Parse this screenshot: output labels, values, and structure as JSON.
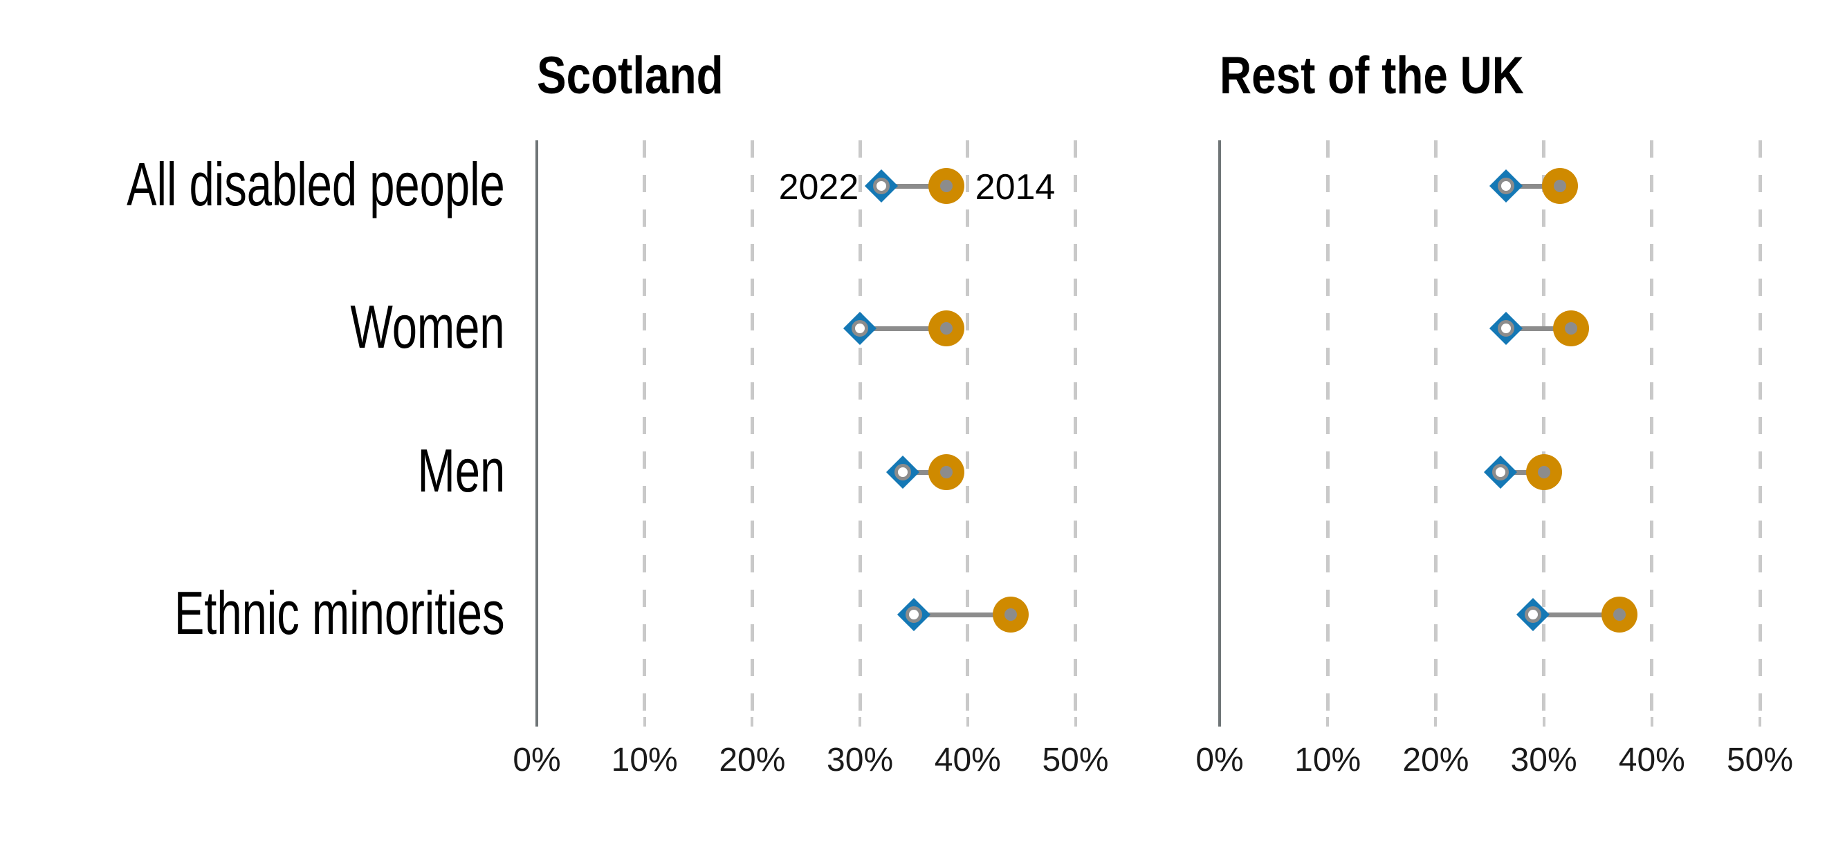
{
  "chart_data": {
    "type": "dumbbell",
    "title": "",
    "categories": [
      "All disabled people",
      "Women",
      "Men",
      "Ethnic minorities"
    ],
    "series_labels": {
      "current": "2022",
      "baseline": "2014"
    },
    "panels": [
      {
        "title": "Scotland",
        "series": [
          {
            "name": "2022",
            "values": [
              32,
              30,
              34,
              35
            ]
          },
          {
            "name": "2014",
            "values": [
              38,
              38,
              38,
              44
            ]
          }
        ]
      },
      {
        "title": "Rest of the UK",
        "series": [
          {
            "name": "2022",
            "values": [
              26.5,
              26.5,
              26,
              29
            ]
          },
          {
            "name": "2014",
            "values": [
              31.5,
              32.5,
              30,
              37
            ]
          }
        ]
      }
    ],
    "x_tick_labels": [
      "0%",
      "10%",
      "20%",
      "30%",
      "40%",
      "50%"
    ],
    "xlim": [
      0,
      50
    ],
    "grid": "vertical-dashed",
    "legend_position": "inline-annotation-first-row-first-panel",
    "annotation": {
      "left_label": "2022",
      "right_label": "2014",
      "panel": 0,
      "row": 0
    },
    "colors": {
      "marker_2022": "#1478b5",
      "marker_2014": "#cf8a00",
      "connector": "#8c8c8c",
      "axis": "#6f7577",
      "grid": "#c9c9c9",
      "text": "#000000"
    }
  }
}
